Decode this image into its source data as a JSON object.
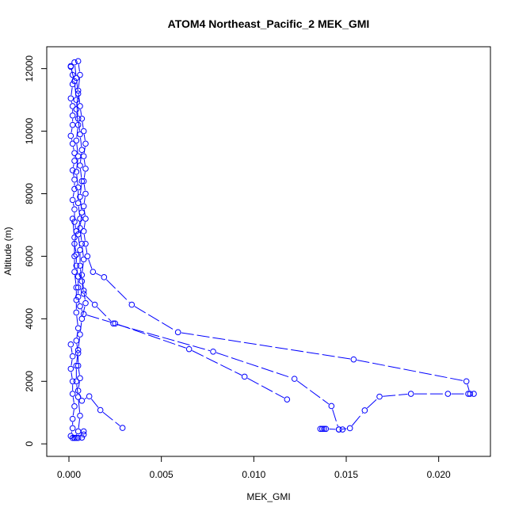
{
  "chart_data": {
    "type": "line",
    "title": "ATOM4 Northeast_Pacific_2 MEK_GMI",
    "xlabel": "MEK_GMI",
    "ylabel": "Altitude (m)",
    "xlim": [
      -0.0012,
      0.0228
    ],
    "ylim": [
      -400,
      12700
    ],
    "xticks": [
      0.0,
      0.005,
      0.01,
      0.015,
      0.02
    ],
    "xtick_labels": [
      "0.000",
      "0.005",
      "0.010",
      "0.015",
      "0.020"
    ],
    "yticks": [
      0,
      2000,
      4000,
      6000,
      8000,
      10000,
      12000
    ],
    "ytick_labels": [
      "0",
      "2000",
      "4000",
      "6000",
      "8000",
      "10000",
      "12000"
    ],
    "grid": false,
    "legend": "none",
    "series_color": "#0000ff",
    "series": [
      {
        "points": [
          [
            0.0001,
            12080
          ],
          [
            0.0002,
            11800
          ],
          [
            0.0002,
            11500
          ],
          [
            0.0001,
            11050
          ],
          [
            0.0002,
            10800
          ],
          [
            0.0002,
            10500
          ],
          [
            0.0002,
            10200
          ],
          [
            0.0001,
            9850
          ],
          [
            0.0002,
            9600
          ],
          [
            0.0003,
            9300
          ],
          [
            0.0003,
            9050
          ],
          [
            0.0002,
            8750
          ],
          [
            0.0003,
            8450
          ],
          [
            0.0003,
            8150
          ],
          [
            0.0002,
            7800
          ],
          [
            0.0003,
            7500
          ],
          [
            0.0003,
            7100
          ],
          [
            0.0004,
            6800
          ],
          [
            0.0003,
            6400
          ],
          [
            0.0004,
            6050
          ],
          [
            0.0004,
            5700
          ],
          [
            0.0005,
            5350
          ],
          [
            0.0005,
            5000
          ],
          [
            0.0005,
            4700
          ],
          [
            0.0006,
            4400
          ],
          [
            0.0008,
            4150
          ],
          [
            0.0025,
            3850
          ],
          [
            0.0065,
            3030
          ],
          [
            0.0095,
            2150
          ],
          [
            0.0118,
            1420
          ]
        ]
      },
      {
        "points": [
          [
            0.0003,
            12200
          ],
          [
            0.0004,
            11700
          ],
          [
            0.0005,
            11200
          ],
          [
            0.0004,
            10700
          ],
          [
            0.0005,
            10200
          ],
          [
            0.0004,
            9700
          ],
          [
            0.0005,
            9200
          ],
          [
            0.0004,
            8700
          ],
          [
            0.0005,
            8200
          ],
          [
            0.0005,
            7700
          ],
          [
            0.0006,
            7200
          ],
          [
            0.0005,
            6700
          ],
          [
            0.0006,
            6200
          ],
          [
            0.0006,
            5700
          ],
          [
            0.0007,
            5200
          ],
          [
            0.0008,
            4800
          ],
          [
            0.0014,
            4450
          ],
          [
            0.0024,
            3850
          ],
          [
            0.0078,
            2950
          ],
          [
            0.0122,
            2080
          ],
          [
            0.0142,
            1210
          ],
          [
            0.0146,
            460
          ],
          [
            0.0152,
            500
          ],
          [
            0.016,
            1070
          ],
          [
            0.0168,
            1510
          ],
          [
            0.0185,
            1600
          ],
          [
            0.0205,
            1600
          ],
          [
            0.0216,
            1600
          ],
          [
            0.0219,
            1600
          ]
        ]
      },
      {
        "points": [
          [
            0.0005,
            12240
          ],
          [
            0.0006,
            11800
          ],
          [
            0.0005,
            11300
          ],
          [
            0.0006,
            10800
          ],
          [
            0.0007,
            10400
          ],
          [
            0.0008,
            10000
          ],
          [
            0.0009,
            9600
          ],
          [
            0.0008,
            9200
          ],
          [
            0.0009,
            8800
          ],
          [
            0.0008,
            8400
          ],
          [
            0.0009,
            8000
          ],
          [
            0.0008,
            7600
          ],
          [
            0.0009,
            7200
          ],
          [
            0.0008,
            6800
          ],
          [
            0.0009,
            6400
          ],
          [
            0.001,
            6000
          ],
          [
            0.0013,
            5500
          ],
          [
            0.0019,
            5330
          ],
          [
            0.0034,
            4450
          ],
          [
            0.0059,
            3570
          ],
          [
            0.0154,
            2700
          ],
          [
            0.0215,
            2000
          ],
          [
            0.0217,
            1600
          ]
        ]
      },
      {
        "points": [
          [
            0.0001,
            12060
          ],
          [
            0.0003,
            11600
          ],
          [
            0.0004,
            11000
          ],
          [
            0.0005,
            10400
          ],
          [
            0.0006,
            9900
          ],
          [
            0.0007,
            9400
          ],
          [
            0.0006,
            8900
          ],
          [
            0.0007,
            8400
          ],
          [
            0.0006,
            7900
          ],
          [
            0.0007,
            7400
          ],
          [
            0.0006,
            6900
          ],
          [
            0.0007,
            6400
          ],
          [
            0.0008,
            5900
          ],
          [
            0.0007,
            5400
          ],
          [
            0.0008,
            4900
          ],
          [
            0.0009,
            4500
          ],
          [
            0.0007,
            4000
          ],
          [
            0.0006,
            3500
          ],
          [
            0.0005,
            3000
          ],
          [
            0.0004,
            2500
          ],
          [
            0.0004,
            2000
          ],
          [
            0.0005,
            1500
          ],
          [
            0.0006,
            900
          ],
          [
            0.0005,
            400
          ],
          [
            0.0003,
            190
          ]
        ]
      },
      {
        "points": [
          [
            0.0002,
            7200
          ],
          [
            0.0003,
            6600
          ],
          [
            0.0003,
            6000
          ],
          [
            0.0003,
            5500
          ],
          [
            0.0004,
            5000
          ],
          [
            0.0004,
            4600
          ],
          [
            0.0004,
            4200
          ],
          [
            0.0005,
            3700
          ],
          [
            0.0004,
            3300
          ],
          [
            0.0005,
            2900
          ],
          [
            0.0005,
            2500
          ],
          [
            0.0006,
            2100
          ],
          [
            0.0005,
            1700
          ],
          [
            0.0007,
            1380
          ],
          [
            0.0011,
            1520
          ],
          [
            0.0017,
            1080
          ],
          [
            0.0029,
            510
          ]
        ]
      },
      {
        "points": [
          [
            0.0001,
            3180
          ],
          [
            0.0002,
            2800
          ],
          [
            0.0001,
            2400
          ],
          [
            0.0002,
            2000
          ],
          [
            0.0002,
            1600
          ],
          [
            0.0003,
            1200
          ],
          [
            0.0002,
            800
          ],
          [
            0.0002,
            500
          ],
          [
            0.0001,
            250
          ],
          [
            0.0002,
            190
          ]
        ]
      },
      {
        "points": [
          [
            0.0136,
            480
          ],
          [
            0.0137,
            480
          ],
          [
            0.0138,
            480
          ],
          [
            0.0139,
            480
          ],
          [
            0.0146,
            460
          ],
          [
            0.0148,
            460
          ]
        ]
      },
      {
        "points": [
          [
            0.0008,
            400
          ],
          [
            0.0008,
            300
          ],
          [
            0.0007,
            200
          ],
          [
            0.0005,
            190
          ],
          [
            0.0004,
            190
          ],
          [
            0.0003,
            190
          ]
        ]
      }
    ]
  }
}
